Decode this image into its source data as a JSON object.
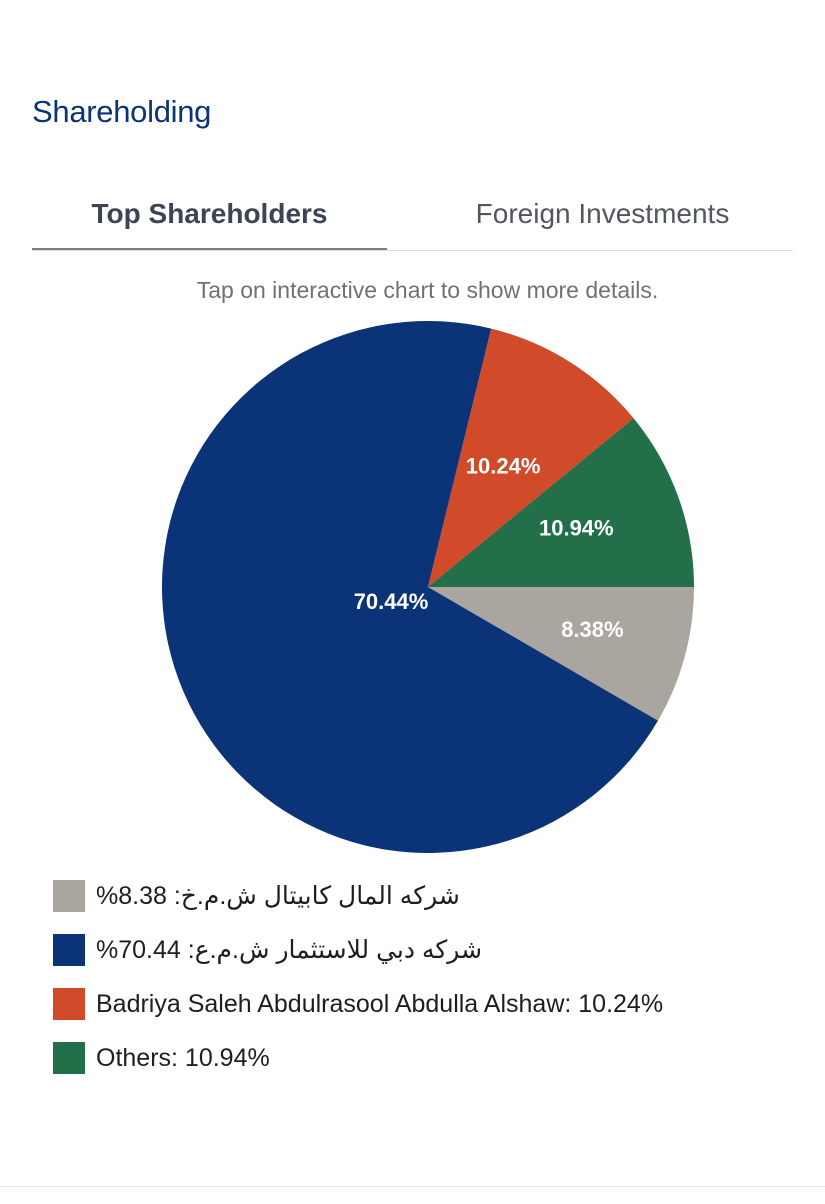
{
  "section": {
    "title": "Shareholding"
  },
  "tabs": [
    {
      "label": "Top Shareholders",
      "active": true
    },
    {
      "label": "Foreign Investments",
      "active": false
    }
  ],
  "hint": "Tap on interactive chart to show more details.",
  "colors": {
    "slice_grey": "#aaa59f",
    "slice_blue": "#0b3478",
    "slice_orange": "#d14a2a",
    "slice_green": "#226f4a"
  },
  "legend": [
    {
      "label": "شركه المال كابيتال ش.م.خ: 8.38%",
      "color": "#aaa59f"
    },
    {
      "label": "شركه دبي للاستثمار ش.م.ع: 70.44%",
      "color": "#0b3478"
    },
    {
      "label": "Badriya Saleh Abdulrasool Abdulla Alshaw: 10.24%",
      "color": "#d14a2a"
    },
    {
      "label": "Others: 10.94%",
      "color": "#226f4a"
    }
  ],
  "chart_data": {
    "type": "pie",
    "categories": [
      "شركه المال كابيتال ش.م.خ",
      "شركه دبي للاستثمار ش.م.ع",
      "Badriya Saleh Abdulrasool Abdulla Alshaw",
      "Others"
    ],
    "values": [
      8.38,
      70.44,
      10.24,
      10.94
    ],
    "labels": [
      "8.38%",
      "70.44%",
      "10.24%",
      "10.94%"
    ],
    "colors": [
      "#aaa59f",
      "#0b3478",
      "#d14a2a",
      "#226f4a"
    ],
    "start": "3 o'clock",
    "direction": "clockwise",
    "legend": "bottom"
  }
}
